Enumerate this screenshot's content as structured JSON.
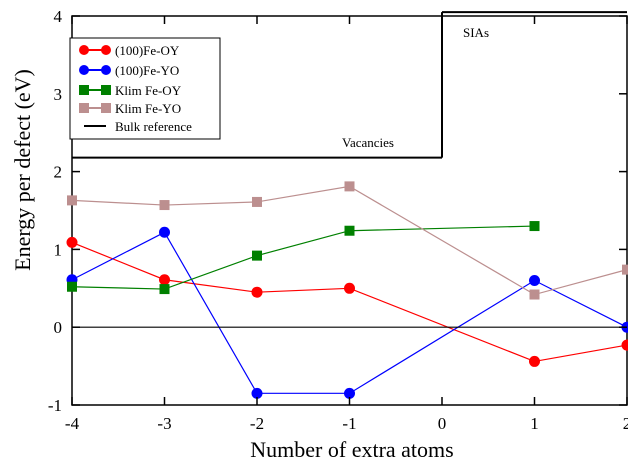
{
  "chart_data": {
    "type": "line",
    "xlabel": "Number of extra atoms",
    "ylabel": "Energy per defect (eV)",
    "xlim": [
      -4,
      2
    ],
    "ylim": [
      -1,
      4
    ],
    "xticks": [
      -4,
      -3,
      -2,
      -1,
      0,
      1,
      2
    ],
    "yticks": [
      -1,
      0,
      1,
      2,
      3,
      4
    ],
    "grid": false,
    "legend_position": "upper-left",
    "series": [
      {
        "name": "(100)Fe-OY",
        "color": "#ff0000",
        "marker": "circle",
        "x": [
          -4,
          -3,
          -2,
          -1,
          1,
          2
        ],
        "y": [
          1.09,
          0.61,
          0.45,
          0.5,
          -0.44,
          -0.23
        ]
      },
      {
        "name": "(100)Fe-YO",
        "color": "#0000ff",
        "marker": "circle",
        "x": [
          -4,
          -3,
          -2,
          -1,
          1,
          2
        ],
        "y": [
          0.61,
          1.22,
          -0.85,
          -0.85,
          0.6,
          0.0
        ]
      },
      {
        "name": "Klim Fe-OY",
        "color": "#008000",
        "marker": "square",
        "x": [
          -4,
          -3,
          -2,
          -1,
          1
        ],
        "y": [
          0.52,
          0.49,
          0.92,
          1.24,
          1.3
        ]
      },
      {
        "name": "Klim Fe-YO",
        "color": "#bc8f8f",
        "marker": "square",
        "x": [
          -4,
          -3,
          -2,
          -1,
          1,
          2
        ],
        "y": [
          1.63,
          1.57,
          1.61,
          1.81,
          0.42,
          0.74
        ]
      },
      {
        "name": "Bulk reference",
        "color": "#000000",
        "marker": "none",
        "x": [
          -4,
          2
        ],
        "y": [
          0,
          0
        ]
      }
    ],
    "annotations": [
      "SIAs",
      "Vacancies"
    ],
    "annotation_boxes": [
      {
        "label": "SIAs",
        "x0": 0.0,
        "x1": 2.0,
        "y0": 4.05,
        "y1": 2.18
      },
      {
        "label": "Vacancies",
        "x0": -4.0,
        "x1": 0.0,
        "y0": 2.18
      }
    ]
  }
}
